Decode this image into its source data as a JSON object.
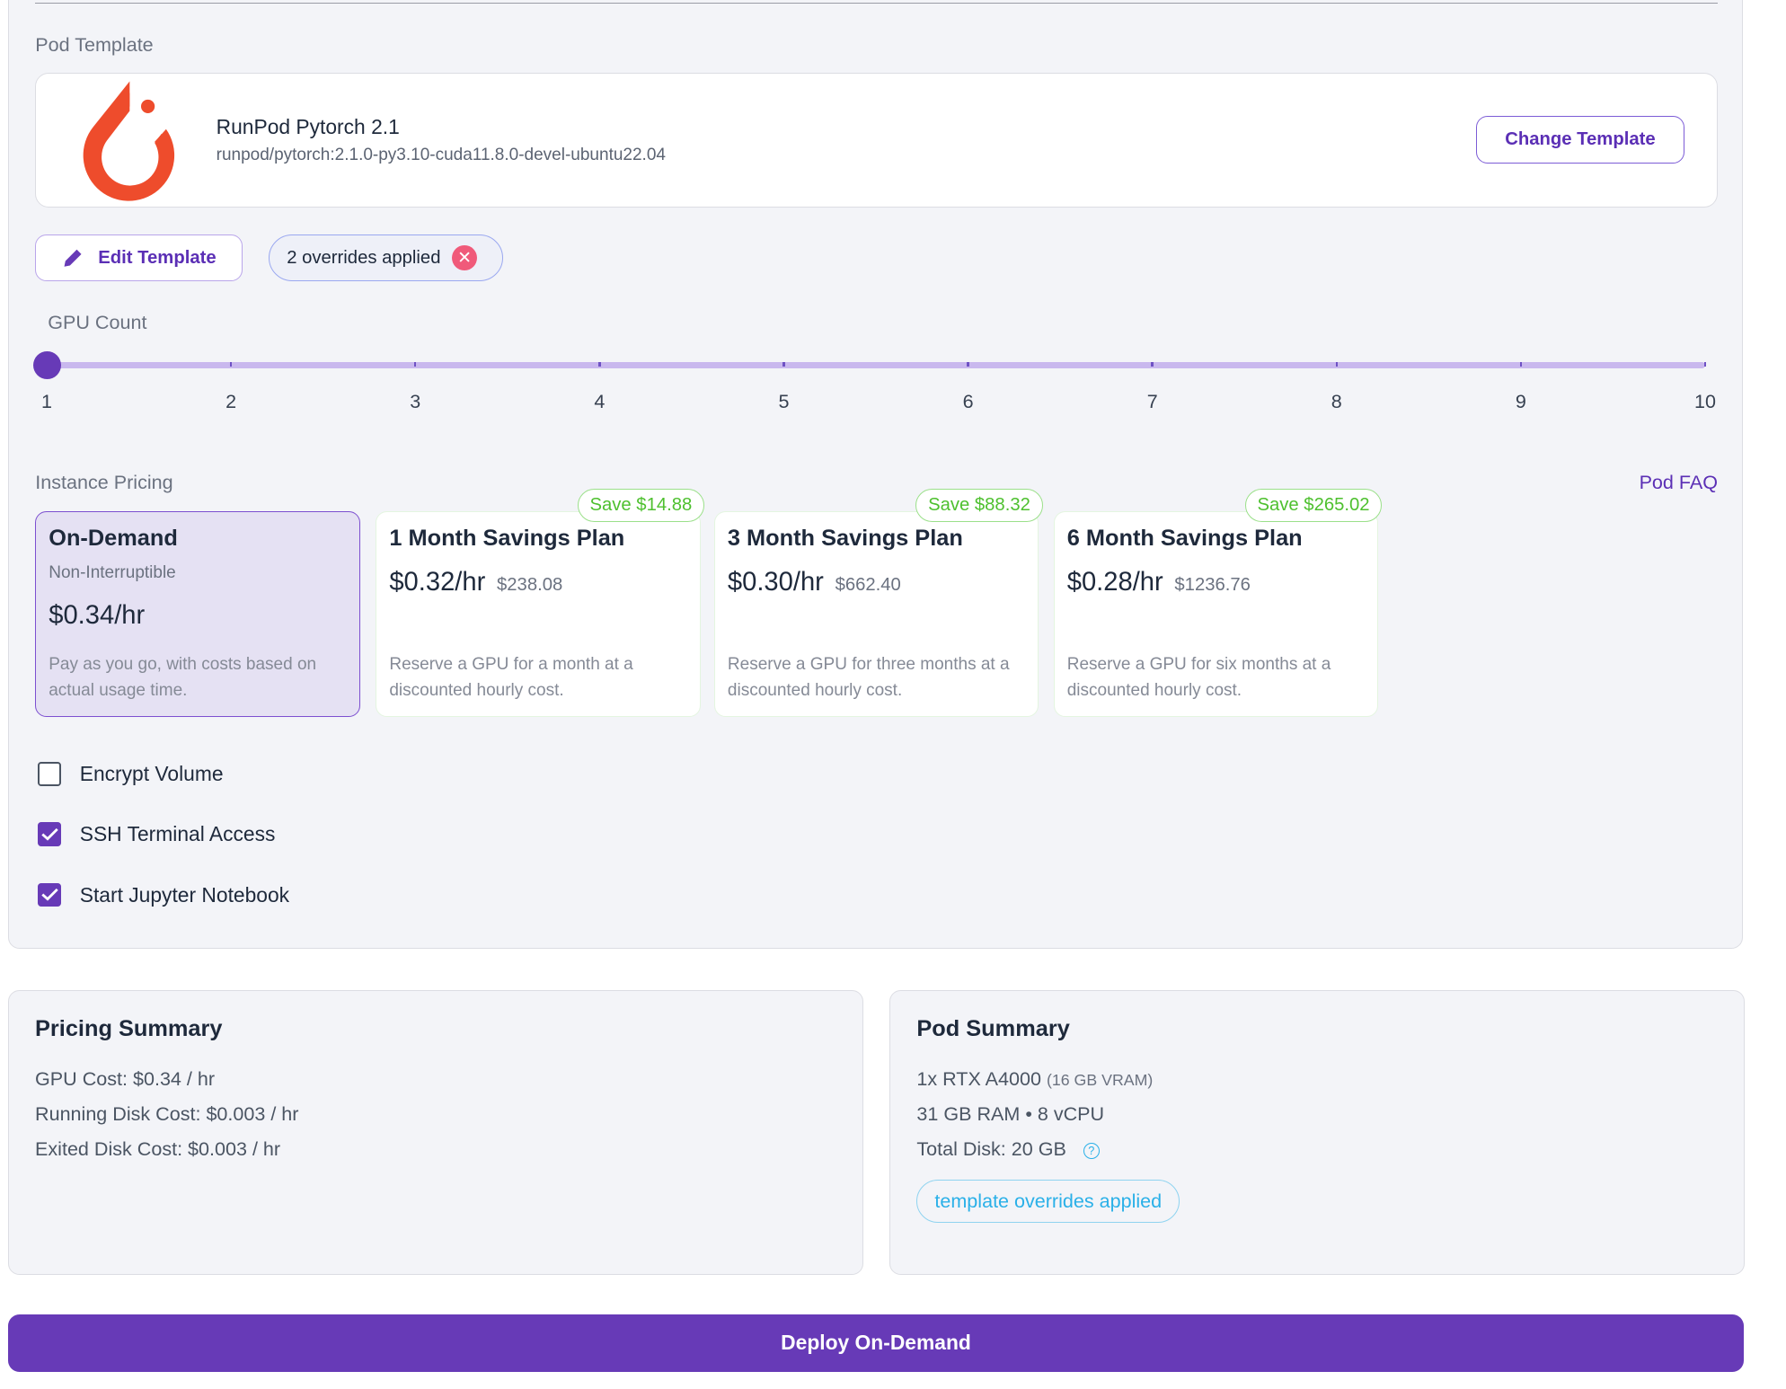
{
  "pod_template": {
    "section_label": "Pod Template",
    "name": "RunPod Pytorch 2.1",
    "image": "runpod/pytorch:2.1.0-py3.10-cuda11.8.0-devel-ubuntu22.04",
    "change_button": "Change Template",
    "edit_button": "Edit Template",
    "overrides_pill": "2 overrides applied"
  },
  "gpu_count": {
    "label": "GPU Count",
    "ticks": [
      "1",
      "2",
      "3",
      "4",
      "5",
      "6",
      "7",
      "8",
      "9",
      "10"
    ],
    "value": 1
  },
  "pricing": {
    "section_label": "Instance Pricing",
    "faq_link": "Pod FAQ",
    "plans": [
      {
        "title": "On-Demand",
        "subtitle": "Non-Interruptible",
        "price": "$0.34/hr",
        "total": "",
        "save": "",
        "desc": "Pay as you go, with costs based on actual usage time.",
        "selected": true
      },
      {
        "title": "1 Month Savings Plan",
        "price": "$0.32/hr",
        "total": "$238.08",
        "save": "Save $14.88",
        "desc": "Reserve a GPU for a month at a discounted hourly cost."
      },
      {
        "title": "3 Month Savings Plan",
        "price": "$0.30/hr",
        "total": "$662.40",
        "save": "Save $88.32",
        "desc": "Reserve a GPU for three months at a discounted hourly cost."
      },
      {
        "title": "6 Month Savings Plan",
        "price": "$0.28/hr",
        "total": "$1236.76",
        "save": "Save $265.02",
        "desc": "Reserve a GPU for six months at a discounted hourly cost."
      }
    ]
  },
  "options": [
    {
      "label": "Encrypt Volume",
      "checked": false
    },
    {
      "label": "SSH Terminal Access",
      "checked": true
    },
    {
      "label": "Start Jupyter Notebook",
      "checked": true
    }
  ],
  "pricing_summary": {
    "title": "Pricing Summary",
    "lines": [
      "GPU Cost: $0.34 / hr",
      "Running Disk Cost: $0.003 / hr",
      "Exited Disk Cost: $0.003 / hr"
    ]
  },
  "pod_summary": {
    "title": "Pod Summary",
    "gpu": "1x RTX A4000",
    "vram": "(16 GB VRAM)",
    "specs": "31 GB RAM • 8 vCPU",
    "disk": "Total Disk: 20 GB",
    "overrides_pill": "template overrides applied"
  },
  "deploy_button": "Deploy On-Demand",
  "colors": {
    "accent": "#673ab7",
    "save_green": "#4ec02f",
    "info_blue": "#2ab0e8",
    "pytorch_orange": "#ee4c2c"
  }
}
